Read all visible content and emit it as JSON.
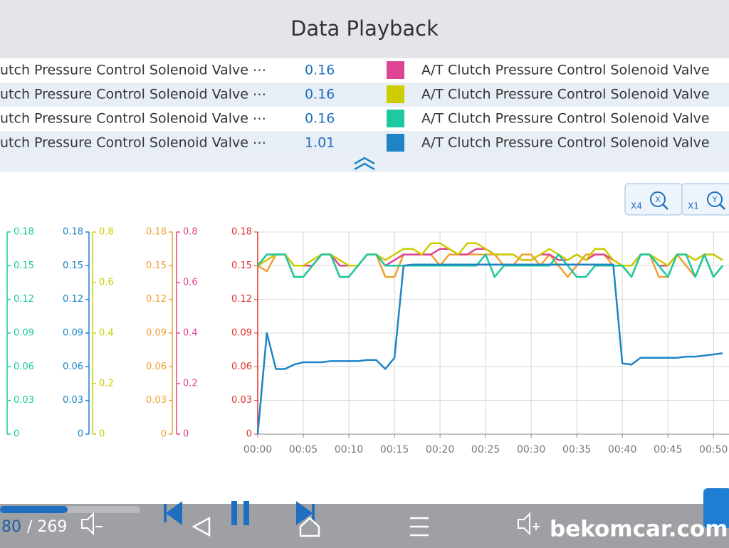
{
  "header": {
    "title": "Data Playback"
  },
  "rows": [
    {
      "name": "utch Pressure Control Solenoid Valve ⋯",
      "value": "0.16",
      "color": "#dd4491",
      "legend": "A/T Clutch Pressure Control Solenoid Valve"
    },
    {
      "name": "utch Pressure Control Solenoid Valve ⋯",
      "value": "0.16",
      "color": "#cccc00",
      "legend": "A/T Clutch Pressure Control Solenoid Valve"
    },
    {
      "name": "utch Pressure Control Solenoid Valve ⋯",
      "value": "0.16",
      "color": "#1cc9a0",
      "legend": "A/T Clutch Pressure Control Solenoid Valve"
    },
    {
      "name": "utch Pressure Control Solenoid Valve ⋯",
      "value": "1.01",
      "color": "#1e84c6",
      "legend": "A/T Clutch Pressure Control Solenoid Valve"
    }
  ],
  "zoom": [
    {
      "label": "X4",
      "icon": "X"
    },
    {
      "label": "X1",
      "icon": "Y"
    }
  ],
  "chart_data": {
    "type": "line",
    "side_axes": [
      {
        "color": "#1cc9a0",
        "side": "right",
        "ticks": [
          0.18,
          0.15,
          0.12,
          0.09,
          0.06,
          0.03,
          0
        ]
      },
      {
        "color": "#1e84c6",
        "side": "left",
        "ticks": [
          0.18,
          0.15,
          0.12,
          0.09,
          0.06,
          0.03,
          0
        ]
      },
      {
        "color": "#cccc00",
        "side": "right",
        "ticks": [
          0.8,
          0.6,
          0.4,
          0.2,
          0
        ]
      },
      {
        "color": "#f0a030",
        "side": "left",
        "ticks": [
          0.18,
          0.15,
          0.12,
          0.09,
          0.06,
          0.03,
          0
        ]
      },
      {
        "color": "#dd4491",
        "side": "right",
        "ticks": [
          0.8,
          0.6,
          0.4,
          0.2,
          0
        ]
      }
    ],
    "axis_color": "#e0302a",
    "ylim": [
      0,
      0.18
    ],
    "yticks": [
      0,
      0.03,
      0.06,
      0.09,
      0.12,
      0.15,
      0.18
    ],
    "xlim": [
      0,
      51.7
    ],
    "xticks": [
      {
        "value": 0,
        "label": "00:00"
      },
      {
        "value": 5,
        "label": "00:05"
      },
      {
        "value": 10,
        "label": "00:10"
      },
      {
        "value": 15,
        "label": "00:15"
      },
      {
        "value": 20,
        "label": "00:20"
      },
      {
        "value": 25,
        "label": "00:25"
      },
      {
        "value": 30,
        "label": "00:30"
      },
      {
        "value": 35,
        "label": "00:35"
      },
      {
        "value": 40,
        "label": "00:40"
      },
      {
        "value": 45,
        "label": "00:45"
      },
      {
        "value": 50,
        "label": "00:50"
      }
    ],
    "grid": true,
    "x": [
      0,
      1,
      2,
      3,
      4,
      5,
      6,
      7,
      8,
      9,
      10,
      11,
      12,
      13,
      14,
      15,
      16,
      17,
      18,
      19,
      20,
      21,
      22,
      23,
      24,
      25,
      26,
      27,
      28,
      29,
      30,
      31,
      32,
      33,
      34,
      35,
      36,
      37,
      38,
      39,
      40,
      41,
      42,
      43,
      44,
      45,
      46,
      47,
      48,
      49,
      50,
      51
    ],
    "series": [
      {
        "color": "#f0a030",
        "values": [
          0.15,
          0.145,
          0.16,
          0.16,
          0.14,
          0.14,
          0.15,
          0.16,
          0.16,
          0.14,
          0.14,
          0.15,
          0.16,
          0.16,
          0.14,
          0.14,
          0.16,
          0.16,
          0.16,
          0.16,
          0.15,
          0.16,
          0.16,
          0.16,
          0.16,
          0.16,
          0.16,
          0.15,
          0.15,
          0.16,
          0.16,
          0.15,
          0.16,
          0.15,
          0.14,
          0.15,
          0.16,
          0.16,
          0.16,
          0.15,
          0.15,
          0.14,
          0.16,
          0.16,
          0.14,
          0.14,
          0.16,
          0.15,
          0.14,
          0.16,
          0.14,
          0.15
        ]
      },
      {
        "color": "#dd4491",
        "values": [
          0.15,
          0.16,
          0.16,
          0.16,
          0.15,
          0.15,
          0.15,
          0.16,
          0.16,
          0.15,
          0.15,
          0.15,
          0.16,
          0.16,
          0.15,
          0.155,
          0.16,
          0.16,
          0.16,
          0.16,
          0.165,
          0.165,
          0.16,
          0.16,
          0.165,
          0.165,
          0.16,
          0.16,
          0.16,
          0.155,
          0.155,
          0.16,
          0.16,
          0.155,
          0.155,
          0.16,
          0.155,
          0.16,
          0.16,
          0.155,
          0.15,
          0.15,
          0.16,
          0.16,
          0.15,
          0.15,
          0.16,
          0.16,
          0.155,
          0.16,
          0.16,
          0.155
        ]
      },
      {
        "color": "#cccc00",
        "values": [
          0.15,
          0.155,
          0.16,
          0.16,
          0.15,
          0.15,
          0.155,
          0.16,
          0.16,
          0.155,
          0.15,
          0.15,
          0.16,
          0.16,
          0.155,
          0.16,
          0.165,
          0.165,
          0.16,
          0.17,
          0.17,
          0.165,
          0.16,
          0.17,
          0.17,
          0.165,
          0.16,
          0.16,
          0.16,
          0.155,
          0.155,
          0.16,
          0.165,
          0.16,
          0.155,
          0.16,
          0.155,
          0.165,
          0.165,
          0.155,
          0.15,
          0.15,
          0.16,
          0.16,
          0.155,
          0.15,
          0.16,
          0.16,
          0.155,
          0.16,
          0.16,
          0.155
        ]
      },
      {
        "color": "#1cc9a0",
        "values": [
          0.15,
          0.16,
          0.16,
          0.16,
          0.14,
          0.14,
          0.15,
          0.16,
          0.16,
          0.14,
          0.14,
          0.15,
          0.16,
          0.16,
          0.15,
          0.15,
          0.15,
          0.15,
          0.15,
          0.15,
          0.15,
          0.15,
          0.15,
          0.15,
          0.15,
          0.16,
          0.14,
          0.15,
          0.15,
          0.15,
          0.15,
          0.15,
          0.15,
          0.16,
          0.15,
          0.14,
          0.14,
          0.15,
          0.15,
          0.15,
          0.15,
          0.14,
          0.16,
          0.16,
          0.15,
          0.14,
          0.16,
          0.16,
          0.14,
          0.16,
          0.14,
          0.15
        ]
      },
      {
        "color": "#1e84c6",
        "values": [
          0,
          0.09,
          0.058,
          0.058,
          0.062,
          0.064,
          0.064,
          0.064,
          0.065,
          0.065,
          0.065,
          0.065,
          0.066,
          0.066,
          0.058,
          0.068,
          0.15,
          0.151,
          0.151,
          0.151,
          0.151,
          0.151,
          0.151,
          0.151,
          0.151,
          0.151,
          0.151,
          0.151,
          0.151,
          0.151,
          0.151,
          0.151,
          0.151,
          0.151,
          0.151,
          0.151,
          0.151,
          0.151,
          0.151,
          0.151,
          0.063,
          0.062,
          0.068,
          0.068,
          0.068,
          0.068,
          0.068,
          0.069,
          0.069,
          0.07,
          0.071,
          0.072
        ]
      }
    ]
  },
  "player": {
    "position": "80",
    "total": "/ 269"
  },
  "watermark": "bekomcar.com"
}
